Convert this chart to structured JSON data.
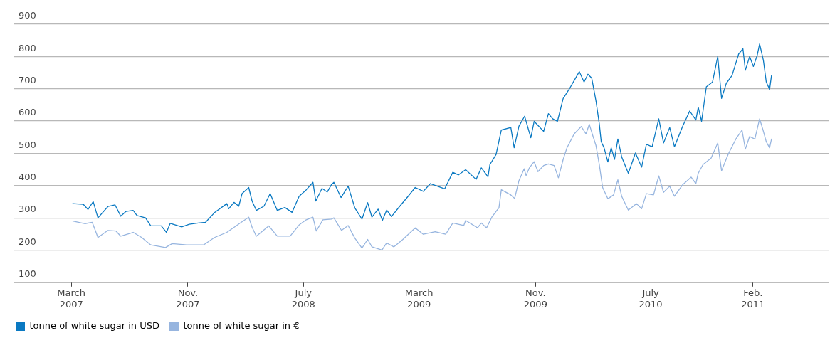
{
  "chart_data": {
    "type": "line",
    "legend": "bottom",
    "grid": "y",
    "marker": "none",
    "line_style": "solid",
    "xlim": [
      "2006-11-01",
      "2011-07-10"
    ],
    "xticks": [
      {
        "value": "2007-03",
        "label": "March 2007"
      },
      {
        "value": "2007-11",
        "label": "Nov. 2007"
      },
      {
        "value": "2008-07",
        "label": "July 2008"
      },
      {
        "value": "2009-03",
        "label": "March 2009"
      },
      {
        "value": "2009-11",
        "label": "Nov. 2009"
      },
      {
        "value": "2010-07",
        "label": "July 2010"
      },
      {
        "value": "2011-02",
        "label": "Feb. 2011"
      }
    ],
    "ylim": [
      100,
      900
    ],
    "yticks": [
      100,
      200,
      300,
      400,
      500,
      600,
      700,
      800,
      900
    ],
    "series": [
      {
        "name": "tonne of white sugar in USD",
        "color": "#0a79c2",
        "x": [
          "2007-03-04",
          "2007-03-26",
          "2007-04-05",
          "2007-04-16",
          "2007-04-26",
          "2007-05-17",
          "2007-06-01",
          "2007-06-13",
          "2007-06-24",
          "2007-07-09",
          "2007-07-17",
          "2007-08-04",
          "2007-08-15",
          "2007-09-06",
          "2007-09-17",
          "2007-09-25",
          "2007-10-19",
          "2007-11-04",
          "2007-11-23",
          "2007-12-08",
          "2007-12-27",
          "2008-01-22",
          "2008-01-26",
          "2008-02-06",
          "2008-02-16",
          "2008-02-23",
          "2008-03-08",
          "2008-03-15",
          "2008-03-24",
          "2008-04-09",
          "2008-04-22",
          "2008-05-07",
          "2008-05-23",
          "2008-06-07",
          "2008-06-22",
          "2008-07-07",
          "2008-07-21",
          "2008-07-27",
          "2008-08-09",
          "2008-08-20",
          "2008-08-29",
          "2008-09-03",
          "2008-09-18",
          "2008-10-03",
          "2008-10-17",
          "2008-11-01",
          "2008-11-13",
          "2008-11-22",
          "2008-12-05",
          "2008-12-14",
          "2008-12-23",
          "2009-01-02",
          "2009-01-19",
          "2009-02-04",
          "2009-02-21",
          "2009-03-10",
          "2009-03-25",
          "2009-04-24",
          "2009-05-11",
          "2009-05-23",
          "2009-06-07",
          "2009-06-29",
          "2009-07-10",
          "2009-07-24",
          "2009-07-28",
          "2009-08-10",
          "2009-08-21",
          "2009-09-10",
          "2009-09-17",
          "2009-09-27",
          "2009-10-09",
          "2009-10-22",
          "2009-10-29",
          "2009-11-18",
          "2009-11-28",
          "2009-12-07",
          "2009-12-17",
          "2009-12-29",
          "2010-01-12",
          "2010-01-21",
          "2010-02-01",
          "2010-02-11",
          "2010-02-19",
          "2010-02-27",
          "2010-03-08",
          "2010-03-15",
          "2010-03-19",
          "2010-03-25",
          "2010-04-02",
          "2010-04-09",
          "2010-04-16",
          "2010-04-23",
          "2010-05-01",
          "2010-05-15",
          "2010-05-30",
          "2010-06-12",
          "2010-06-22",
          "2010-07-04",
          "2010-07-18",
          "2010-07-28",
          "2010-08-10",
          "2010-08-20",
          "2010-09-06",
          "2010-09-21",
          "2010-10-04",
          "2010-10-09",
          "2010-10-16",
          "2010-10-26",
          "2010-11-08",
          "2010-11-19",
          "2010-11-27",
          "2010-12-07",
          "2010-12-19",
          "2011-01-02",
          "2011-01-11",
          "2011-01-16",
          "2011-01-25",
          "2011-02-02",
          "2011-02-10",
          "2011-02-15",
          "2011-02-23",
          "2011-03-01",
          "2011-03-08",
          "2011-03-12"
        ],
        "values": [
          344,
          342,
          326,
          350,
          300,
          335,
          340,
          305,
          320,
          323,
          307,
          300,
          275,
          275,
          255,
          283,
          272,
          280,
          284,
          286,
          316,
          344,
          328,
          348,
          336,
          375,
          394,
          352,
          323,
          336,
          375,
          323,
          332,
          317,
          367,
          387,
          410,
          352,
          391,
          380,
          403,
          410,
          363,
          398,
          331,
          296,
          347,
          302,
          327,
          292,
          324,
          304,
          335,
          363,
          394,
          382,
          406,
          390,
          441,
          433,
          449,
          419,
          455,
          427,
          465,
          496,
          572,
          580,
          517,
          584,
          615,
          548,
          599,
          568,
          623,
          607,
          599,
          670,
          702,
          725,
          753,
          721,
          745,
          733,
          662,
          591,
          536,
          517,
          473,
          517,
          481,
          544,
          489,
          438,
          501,
          457,
          528,
          520,
          607,
          532,
          580,
          520,
          583,
          631,
          603,
          643,
          599,
          706,
          721,
          800,
          670,
          717,
          741,
          808,
          824,
          757,
          800,
          769,
          804,
          839,
          788,
          721,
          698,
          741
        ]
      },
      {
        "name": "tonne of white sugar in €",
        "color": "#97b5df",
        "x": [
          "2007-03-04",
          "2007-03-30",
          "2007-04-14",
          "2007-04-26",
          "2007-05-17",
          "2007-06-03",
          "2007-06-13",
          "2007-07-09",
          "2007-07-27",
          "2007-08-15",
          "2007-09-15",
          "2007-09-29",
          "2007-10-29",
          "2007-12-04",
          "2007-12-27",
          "2008-01-22",
          "2008-02-21",
          "2008-03-08",
          "2008-03-15",
          "2008-03-24",
          "2008-04-19",
          "2008-05-07",
          "2008-06-03",
          "2008-06-22",
          "2008-07-07",
          "2008-07-21",
          "2008-07-28",
          "2008-08-11",
          "2008-08-29",
          "2008-09-03",
          "2008-09-19",
          "2008-10-03",
          "2008-10-17",
          "2008-11-01",
          "2008-11-13",
          "2008-11-22",
          "2008-12-13",
          "2008-12-23",
          "2009-01-07",
          "2009-01-26",
          "2009-02-21",
          "2009-03-10",
          "2009-04-04",
          "2009-04-26",
          "2009-05-11",
          "2009-06-03",
          "2009-06-07",
          "2009-07-02",
          "2009-07-10",
          "2009-07-21",
          "2009-08-01",
          "2009-08-10",
          "2009-08-16",
          "2009-08-21",
          "2009-09-10",
          "2009-09-18",
          "2009-09-27",
          "2009-10-08",
          "2009-10-12",
          "2009-10-19",
          "2009-10-29",
          "2009-11-06",
          "2009-11-18",
          "2009-11-28",
          "2009-12-10",
          "2009-12-19",
          "2009-12-29",
          "2010-01-06",
          "2010-01-21",
          "2010-02-05",
          "2010-02-15",
          "2010-02-22",
          "2010-03-01",
          "2010-03-08",
          "2010-03-15",
          "2010-03-22",
          "2010-04-02",
          "2010-04-14",
          "2010-04-23",
          "2010-05-01",
          "2010-05-15",
          "2010-06-01",
          "2010-06-12",
          "2010-06-22",
          "2010-07-07",
          "2010-07-18",
          "2010-07-28",
          "2010-08-10",
          "2010-08-20",
          "2010-09-06",
          "2010-09-24",
          "2010-10-04",
          "2010-10-09",
          "2010-10-19",
          "2010-11-05",
          "2010-11-19",
          "2010-11-27",
          "2010-12-11",
          "2010-12-27",
          "2011-01-09",
          "2011-01-16",
          "2011-01-25",
          "2011-02-05",
          "2011-02-15",
          "2011-02-23",
          "2011-03-01",
          "2011-03-08",
          "2011-03-12"
        ],
        "values": [
          290,
          282,
          286,
          239,
          261,
          259,
          243,
          255,
          239,
          216,
          208,
          220,
          216,
          216,
          239,
          255,
          286,
          302,
          271,
          243,
          275,
          243,
          243,
          278,
          294,
          302,
          259,
          294,
          296,
          300,
          261,
          276,
          237,
          206,
          233,
          210,
          200,
          222,
          210,
          233,
          269,
          249,
          257,
          249,
          284,
          276,
          292,
          269,
          284,
          269,
          302,
          320,
          331,
          387,
          371,
          360,
          415,
          452,
          431,
          455,
          474,
          443,
          462,
          467,
          462,
          424,
          481,
          517,
          560,
          583,
          560,
          590,
          556,
          524,
          465,
          394,
          359,
          371,
          418,
          367,
          324,
          344,
          328,
          375,
          371,
          430,
          379,
          398,
          367,
          402,
          426,
          406,
          438,
          465,
          485,
          532,
          446,
          497,
          544,
          572,
          513,
          552,
          544,
          607,
          568,
          536,
          517,
          544
        ]
      }
    ]
  }
}
